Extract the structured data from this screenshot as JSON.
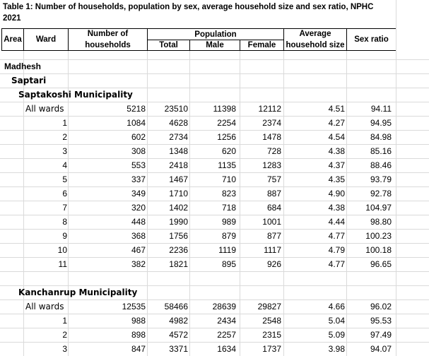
{
  "title": "Table 1: Number of households, population by sex, average household size and sex ratio,  NPHC 2021",
  "header": {
    "area": "Area",
    "ward": "Ward",
    "households": "Number of households",
    "population": "Population",
    "total": "Total",
    "male": "Male",
    "female": "Female",
    "average": "Average household size",
    "sex_ratio": "Sex ratio"
  },
  "region": "Madhesh",
  "district": "Saptari",
  "municipalities": [
    {
      "name": "Saptakoshi Municipality",
      "rows": [
        [
          "All wards",
          "5218",
          "23510",
          "11398",
          "12112",
          "4.51",
          "94.11"
        ],
        [
          "1",
          "1084",
          "4628",
          "2254",
          "2374",
          "4.27",
          "94.95"
        ],
        [
          "2",
          "602",
          "2734",
          "1256",
          "1478",
          "4.54",
          "84.98"
        ],
        [
          "3",
          "308",
          "1348",
          "620",
          "728",
          "4.38",
          "85.16"
        ],
        [
          "4",
          "553",
          "2418",
          "1135",
          "1283",
          "4.37",
          "88.46"
        ],
        [
          "5",
          "337",
          "1467",
          "710",
          "757",
          "4.35",
          "93.79"
        ],
        [
          "6",
          "349",
          "1710",
          "823",
          "887",
          "4.90",
          "92.78"
        ],
        [
          "7",
          "320",
          "1402",
          "718",
          "684",
          "4.38",
          "104.97"
        ],
        [
          "8",
          "448",
          "1990",
          "989",
          "1001",
          "4.44",
          "98.80"
        ],
        [
          "9",
          "368",
          "1756",
          "879",
          "877",
          "4.77",
          "100.23"
        ],
        [
          "10",
          "467",
          "2236",
          "1119",
          "1117",
          "4.79",
          "100.18"
        ],
        [
          "11",
          "382",
          "1821",
          "895",
          "926",
          "4.77",
          "96.65"
        ]
      ]
    },
    {
      "name": "Kanchanrup Municipality",
      "rows": [
        [
          "All wards",
          "12535",
          "58466",
          "28639",
          "29827",
          "4.66",
          "96.02"
        ],
        [
          "1",
          "988",
          "4982",
          "2434",
          "2548",
          "5.04",
          "95.53"
        ],
        [
          "2",
          "898",
          "4572",
          "2257",
          "2315",
          "5.09",
          "97.49"
        ],
        [
          "3",
          "847",
          "3371",
          "1634",
          "1737",
          "3.98",
          "94.07"
        ]
      ]
    }
  ]
}
